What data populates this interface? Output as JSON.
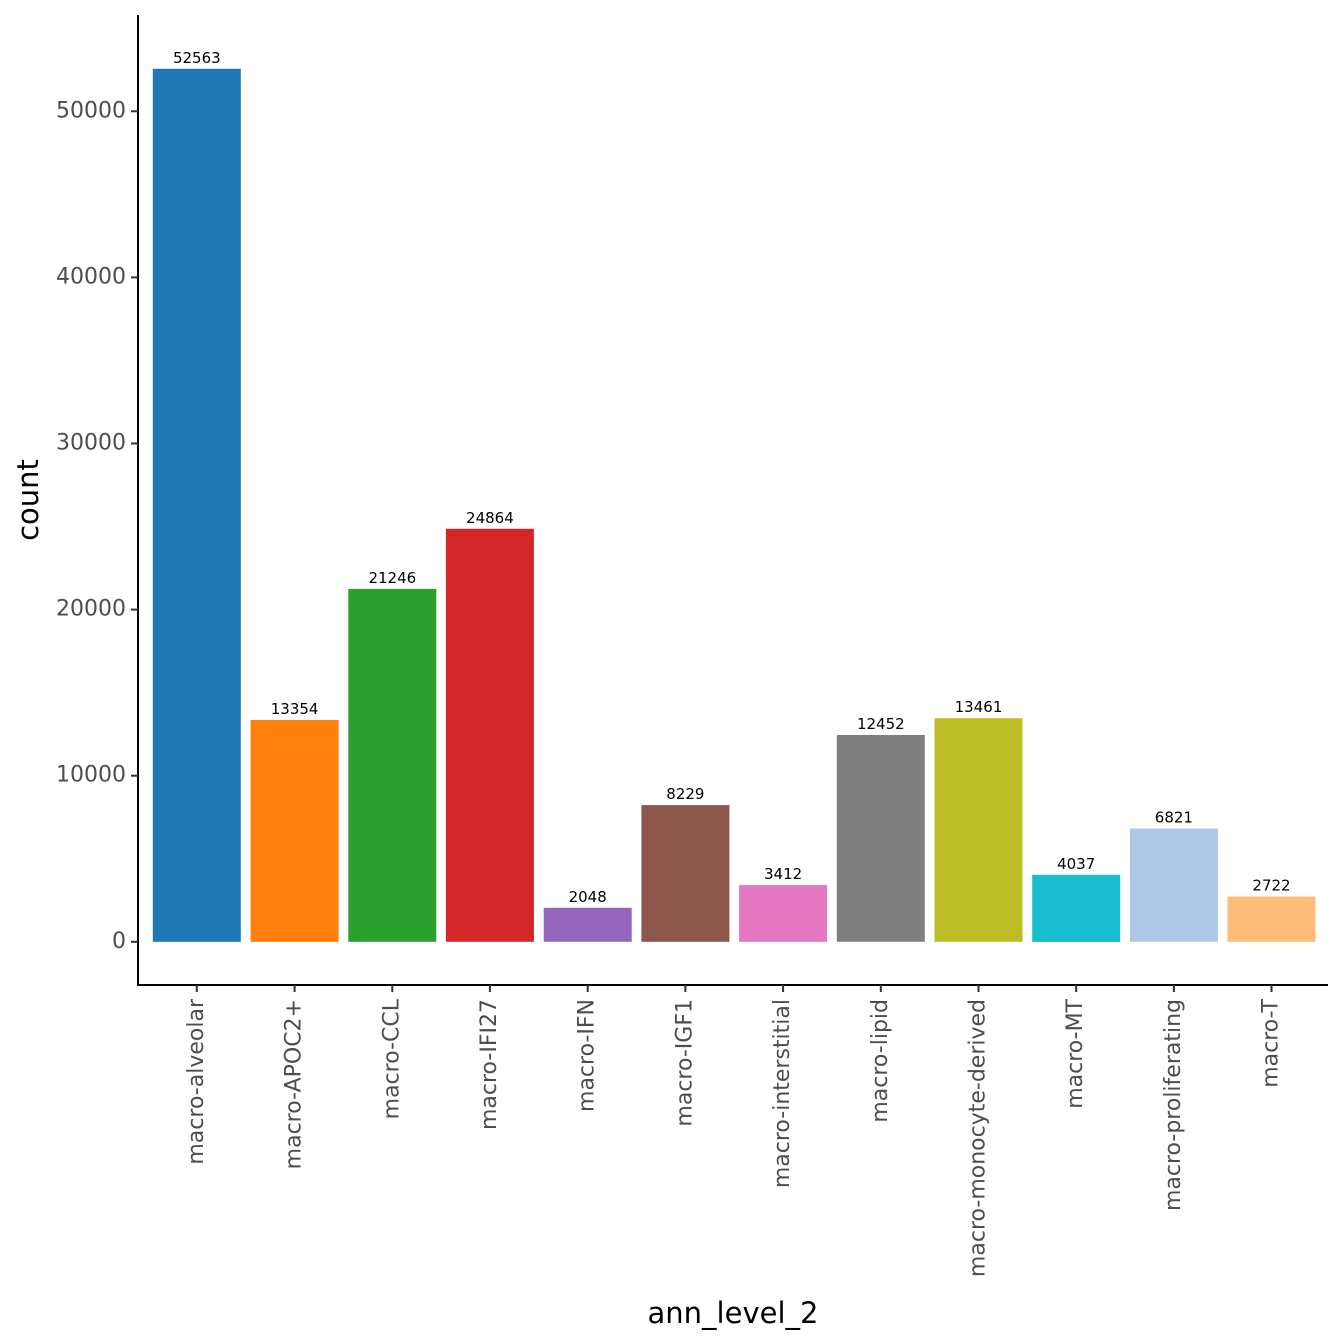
{
  "chart_data": {
    "type": "bar",
    "xlabel": "ann_level_2",
    "ylabel": "count",
    "ylim": [
      -2600,
      55800
    ],
    "yticks": [
      0,
      10000,
      20000,
      30000,
      40000,
      50000
    ],
    "grid": false,
    "legend": "none",
    "categories": [
      "macro-alveolar",
      "macro-APOC2+",
      "macro-CCL",
      "macro-IFI27",
      "macro-IFN",
      "macro-IGF1",
      "macro-interstitial",
      "macro-lipid",
      "macro-monocyte-derived",
      "macro-MT",
      "macro-proliferating",
      "macro-T"
    ],
    "values": [
      52563,
      13354,
      21246,
      24864,
      2048,
      8229,
      3412,
      12452,
      13461,
      4037,
      6821,
      2722
    ],
    "colors": [
      "#1f77b4",
      "#ff7f0e",
      "#2ca02c",
      "#d62728",
      "#9467bd",
      "#8c564b",
      "#e377c2",
      "#7f7f7f",
      "#bcbd22",
      "#17becf",
      "#aec7e8",
      "#ffbb78"
    ]
  }
}
